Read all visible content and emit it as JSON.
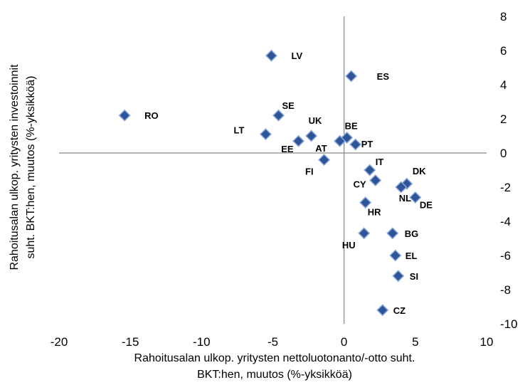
{
  "chart_data": {
    "type": "scatter",
    "xlabel": "Rahoitusalan ulkop. yritysten nettoluotonanto/-otto suht. BKT:hen, muutos (%-yksikköä)",
    "xlabel_lines": [
      "Rahoitusalan ulkop. yritysten nettoluotonanto/-otto suht.",
      "BKT:hen, muutos (%-yksikköä)"
    ],
    "ylabel": "Rahoitusalan ulkop. yritysten investoinnit suht. BKT:hen, muutos (%-yksikköä)",
    "ylabel_lines": [
      "Rahoitusalan ulkop. yritysten investoinnit",
      "suht. BKT:hen, muutos (%-yksikköä)"
    ],
    "xlim": [
      -20,
      10
    ],
    "ylim": [
      -10,
      8
    ],
    "xticks": [
      "-20",
      "-15",
      "-10",
      "-5",
      "0",
      "5",
      "10"
    ],
    "yticks": [
      "8",
      "6",
      "4",
      "2",
      "0",
      "-2",
      "-4",
      "-6",
      "-8",
      "-10"
    ],
    "marker_color": "#2E5597",
    "marker_edge": "#8FAADC",
    "points": [
      {
        "label": "RO",
        "x": -15.4,
        "y": 2.2
      },
      {
        "label": "LV",
        "x": -5.1,
        "y": 5.7
      },
      {
        "label": "ES",
        "x": 0.5,
        "y": 4.5
      },
      {
        "label": "SE",
        "x": -4.6,
        "y": 2.2
      },
      {
        "label": "LT",
        "x": -5.5,
        "y": 1.1
      },
      {
        "label": "EE",
        "x": -3.2,
        "y": 0.7
      },
      {
        "label": "UK",
        "x": -2.3,
        "y": 1.0
      },
      {
        "label": "AT",
        "x": -0.3,
        "y": 0.7
      },
      {
        "label": "BE",
        "x": 0.2,
        "y": 0.9
      },
      {
        "label": "PT",
        "x": 0.8,
        "y": 0.5
      },
      {
        "label": "FI",
        "x": -1.4,
        "y": -0.4
      },
      {
        "label": "IT",
        "x": 1.8,
        "y": -1.0
      },
      {
        "label": "CY",
        "x": 2.2,
        "y": -1.6
      },
      {
        "label": "DK",
        "x": 4.4,
        "y": -1.8
      },
      {
        "label": "NL",
        "x": 4.0,
        "y": -2.0
      },
      {
        "label": "DE",
        "x": 5.0,
        "y": -2.6
      },
      {
        "label": "HR",
        "x": 1.5,
        "y": -2.9
      },
      {
        "label": "BG",
        "x": 3.4,
        "y": -4.7
      },
      {
        "label": "HU",
        "x": 1.4,
        "y": -4.7
      },
      {
        "label": "EL",
        "x": 3.6,
        "y": -6.0
      },
      {
        "label": "SI",
        "x": 3.8,
        "y": -7.2
      },
      {
        "label": "CZ",
        "x": 2.7,
        "y": -9.2
      }
    ]
  }
}
